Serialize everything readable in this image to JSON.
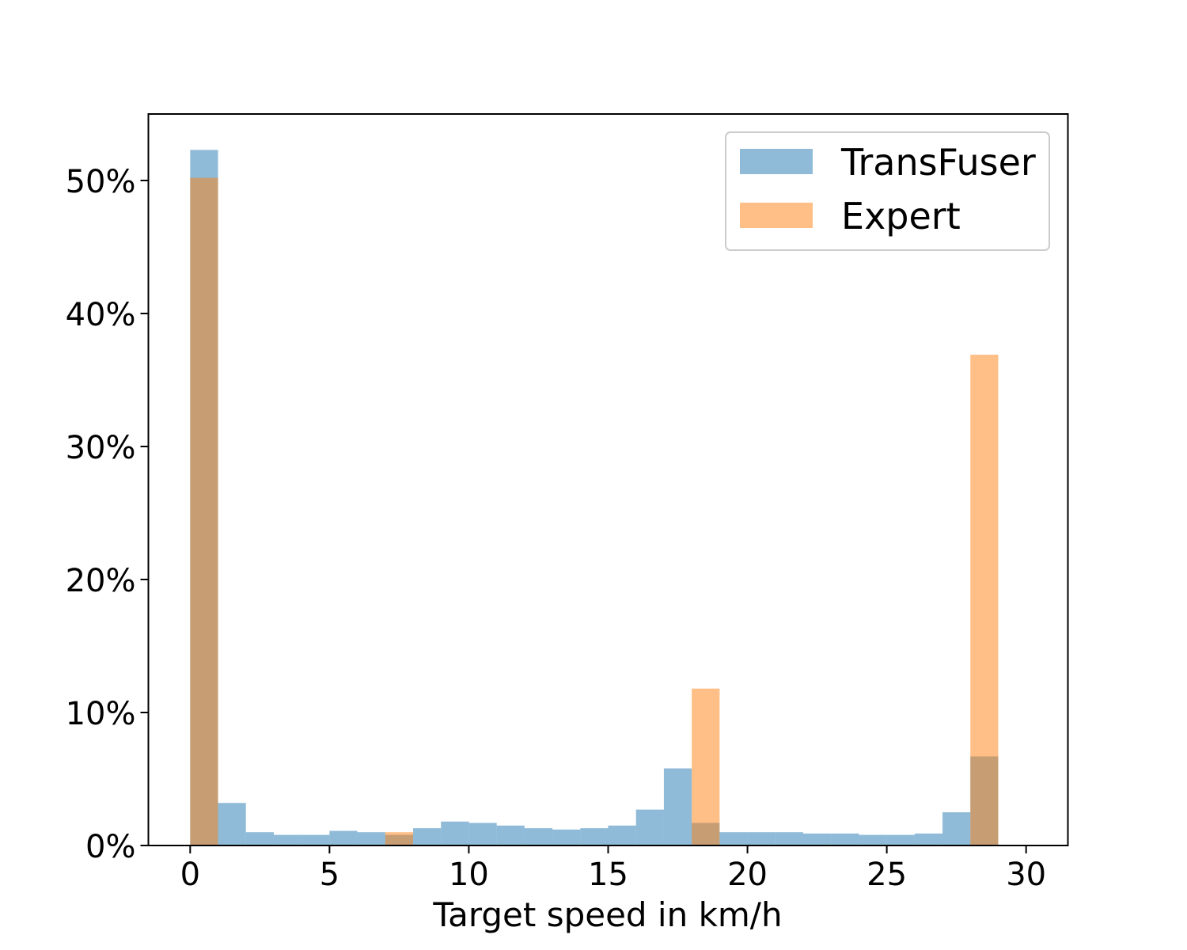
{
  "chart_data": {
    "type": "bar",
    "subtype": "overlapping-histogram",
    "xlabel": "Target speed in km/h",
    "ylabel": "",
    "xlim": [
      -1.5,
      31.5
    ],
    "ylim": [
      0,
      55
    ],
    "x_ticks": [
      0,
      5,
      10,
      15,
      20,
      25,
      30
    ],
    "y_ticks": [
      0,
      10,
      20,
      30,
      40,
      50
    ],
    "y_tick_format": "percent",
    "bin_width": 1,
    "bin_starts": [
      0,
      1,
      2,
      3,
      4,
      5,
      6,
      7,
      8,
      9,
      10,
      11,
      12,
      13,
      14,
      15,
      16,
      17,
      18,
      19,
      20,
      21,
      22,
      23,
      24,
      25,
      26,
      27,
      28
    ],
    "series": [
      {
        "name": "TransFuser",
        "color": "#1f77b4",
        "opacity": 0.5,
        "values": [
          52.3,
          3.2,
          1.0,
          0.8,
          0.8,
          1.1,
          1.0,
          0.8,
          1.3,
          1.8,
          1.7,
          1.5,
          1.3,
          1.2,
          1.3,
          1.5,
          2.7,
          5.8,
          1.7,
          1.0,
          1.0,
          1.0,
          0.9,
          0.9,
          0.8,
          0.8,
          0.9,
          2.5,
          6.7
        ]
      },
      {
        "name": "Expert",
        "color": "#ff7f0e",
        "opacity": 0.5,
        "values": [
          50.2,
          0,
          0,
          0,
          0,
          0,
          0,
          1.0,
          0,
          0,
          0,
          0,
          0,
          0,
          0,
          0,
          0,
          0,
          11.8,
          0,
          0,
          0,
          0,
          0,
          0,
          0,
          0,
          0,
          36.9
        ]
      }
    ],
    "legend_position": "top-right",
    "grid": false
  }
}
